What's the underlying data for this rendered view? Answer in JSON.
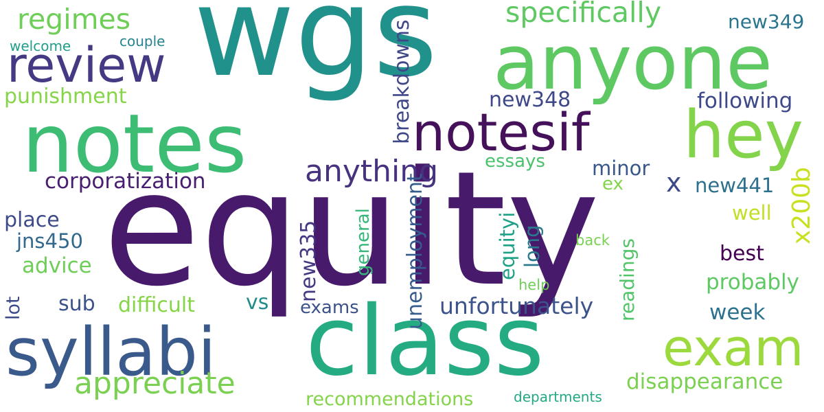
{
  "words": [
    {
      "text": "wgs",
      "color": "#21918c"
    },
    {
      "text": "equity",
      "color": "#481a6c"
    },
    {
      "text": "class",
      "color": "#25ab82"
    },
    {
      "text": "notes",
      "color": "#3dbc74"
    },
    {
      "text": "anyone",
      "color": "#5ec962"
    },
    {
      "text": "syllabi",
      "color": "#3b5a8c"
    },
    {
      "text": "review",
      "color": "#443a83"
    },
    {
      "text": "notesif",
      "color": "#45115b"
    },
    {
      "text": "hey",
      "color": "#84d44b"
    },
    {
      "text": "exam",
      "color": "#9bd93c"
    },
    {
      "text": "appreciate",
      "color": "#7ad151"
    },
    {
      "text": "specifically",
      "color": "#5ec962"
    },
    {
      "text": "regimes",
      "color": "#6ece58"
    },
    {
      "text": "anything",
      "color": "#46327e"
    },
    {
      "text": "corporatization",
      "color": "#481f70"
    },
    {
      "text": "disappearance",
      "color": "#7ad151"
    },
    {
      "text": "unfortunately",
      "color": "#3b528b"
    },
    {
      "text": "recommendations",
      "color": "#84d44b"
    },
    {
      "text": "punishment",
      "color": "#86d549"
    },
    {
      "text": "following",
      "color": "#3e4989"
    },
    {
      "text": "breakdowns",
      "color": "#3f4788"
    },
    {
      "text": "unemployment",
      "color": "#365c8d"
    },
    {
      "text": "x200b",
      "color": "#c8e020"
    },
    {
      "text": "new348",
      "color": "#3f4889"
    },
    {
      "text": "new349",
      "color": "#2a768e"
    },
    {
      "text": "new441",
      "color": "#2d708e"
    },
    {
      "text": "new335",
      "color": "#453781"
    },
    {
      "text": "jns450",
      "color": "#31688e"
    },
    {
      "text": "advice",
      "color": "#6ece58"
    },
    {
      "text": "place",
      "color": "#3e4a89"
    },
    {
      "text": "probably",
      "color": "#5ec962"
    },
    {
      "text": "difficult",
      "color": "#86d549"
    },
    {
      "text": "minor",
      "color": "#38588c"
    },
    {
      "text": "essays",
      "color": "#4ac16d"
    },
    {
      "text": "best",
      "color": "#440154"
    },
    {
      "text": "week",
      "color": "#2c728e"
    },
    {
      "text": "exams",
      "color": "#3b528b"
    },
    {
      "text": "sub",
      "color": "#3b528b"
    },
    {
      "text": "vs",
      "color": "#228c8d"
    },
    {
      "text": "x",
      "color": "#3e4989"
    },
    {
      "text": "ex",
      "color": "#84d44b"
    },
    {
      "text": "well",
      "color": "#c2df23"
    },
    {
      "text": "back",
      "color": "#7ad151"
    },
    {
      "text": "help",
      "color": "#6ece58"
    },
    {
      "text": "departments",
      "color": "#22a884"
    },
    {
      "text": "welcome",
      "color": "#1f9e89"
    },
    {
      "text": "couple",
      "color": "#26828e"
    },
    {
      "text": "general",
      "color": "#35b779"
    },
    {
      "text": "equityi",
      "color": "#1fa187"
    },
    {
      "text": "long",
      "color": "#2a788e"
    },
    {
      "text": "readings",
      "color": "#52c569"
    },
    {
      "text": "lot",
      "color": "#3e4989"
    }
  ]
}
